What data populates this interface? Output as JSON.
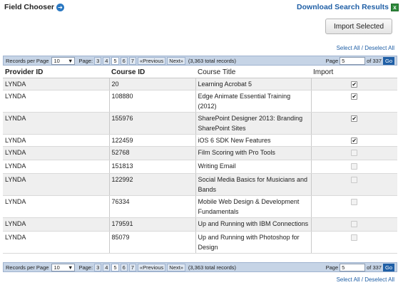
{
  "header": {
    "field_chooser": "Field Chooser",
    "download": "Download Search Results",
    "import_selected": "Import Selected",
    "select_all": "Select All",
    "separator": "/",
    "deselect_all": "Deselect All"
  },
  "pager": {
    "records_per_page_label": "Records per Page",
    "records_per_page_value": "10",
    "page_label": "Page:",
    "pages": [
      "3",
      "4",
      "5",
      "6",
      "7"
    ],
    "current_page": "5",
    "previous": "«Previous",
    "next": "Next»",
    "total": "(3,363 total records)",
    "page_label_right": "Page",
    "page_input": "5",
    "of_pages": "of 337",
    "go": "Go"
  },
  "table": {
    "columns": [
      "Provider ID",
      "Course ID",
      "Course Title",
      "Import"
    ],
    "rows": [
      {
        "provider": "LYNDA",
        "course_id": "20",
        "title": "Learning Acrobat 5",
        "import": true
      },
      {
        "provider": "LYNDA",
        "course_id": "108880",
        "title": "Edge Animate Essential Training (2012)",
        "import": true
      },
      {
        "provider": "LYNDA",
        "course_id": "155976",
        "title": "SharePoint Designer 2013: Branding SharePoint Sites",
        "import": true
      },
      {
        "provider": "LYNDA",
        "course_id": "122459",
        "title": "iOS 6 SDK New Features",
        "import": true
      },
      {
        "provider": "LYNDA",
        "course_id": "52768",
        "title": "Film Scoring with Pro Tools",
        "import": false
      },
      {
        "provider": "LYNDA",
        "course_id": "151813",
        "title": "Writing Email",
        "import": false
      },
      {
        "provider": "LYNDA",
        "course_id": "122992",
        "title": "Social Media Basics for Musicians and Bands",
        "import": false
      },
      {
        "provider": "LYNDA",
        "course_id": "76334",
        "title": "Mobile Web Design & Development Fundamentals",
        "import": false
      },
      {
        "provider": "LYNDA",
        "course_id": "179591",
        "title": "Up and Running with IBM Connections",
        "import": false
      },
      {
        "provider": "LYNDA",
        "course_id": "85079",
        "title": "Up and Running with Photoshop for Design",
        "import": false
      }
    ]
  },
  "icons": {
    "field_chooser": "arrow-right-circle-icon",
    "download": "excel-icon",
    "dropdown": "dropdown-arrow-icon",
    "checkbox": "checkmark-icon"
  },
  "colors": {
    "link": "#1f5fa6",
    "pager_bg": "#c6d4e6",
    "go_button": "#1f5fa6",
    "alt_row": "#efefef"
  }
}
